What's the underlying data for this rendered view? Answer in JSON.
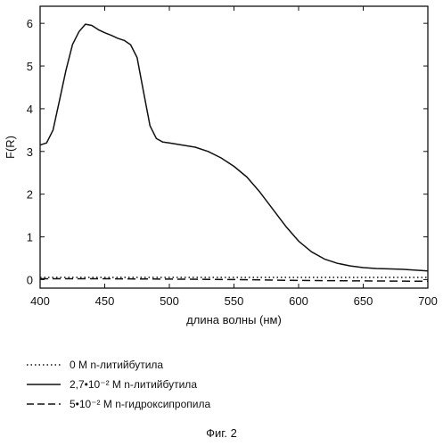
{
  "chart_data": {
    "type": "line",
    "xlabel": "длина волны (нм)",
    "ylabel": "F(R)",
    "xlim": [
      400,
      700
    ],
    "ylim": [
      -0.2,
      6.4
    ],
    "xticks": [
      "400",
      "450",
      "500",
      "550",
      "600",
      "650",
      "700"
    ],
    "yticks": [
      "0",
      "1",
      "2",
      "3",
      "4",
      "5",
      "6"
    ],
    "grid": false,
    "legend_position": "bottom",
    "series": [
      {
        "name": "0 М n-литийбутила",
        "style": "dotted",
        "x": [
          400,
          450,
          500,
          550,
          600,
          650,
          700
        ],
        "y": [
          0.05,
          0.05,
          0.05,
          0.05,
          0.05,
          0.05,
          0.05
        ]
      },
      {
        "name": "2,7•10⁻² М n-литийбутила",
        "style": "solid",
        "x": [
          400,
          405,
          410,
          415,
          420,
          425,
          430,
          435,
          440,
          445,
          450,
          455,
          460,
          465,
          470,
          475,
          480,
          485,
          490,
          495,
          500,
          510,
          520,
          530,
          540,
          550,
          560,
          570,
          580,
          590,
          600,
          610,
          620,
          630,
          640,
          650,
          660,
          680,
          700
        ],
        "y": [
          3.15,
          3.2,
          3.5,
          4.2,
          4.9,
          5.5,
          5.8,
          5.98,
          5.95,
          5.85,
          5.78,
          5.72,
          5.65,
          5.6,
          5.5,
          5.2,
          4.4,
          3.6,
          3.3,
          3.22,
          3.2,
          3.15,
          3.1,
          3.0,
          2.85,
          2.65,
          2.4,
          2.05,
          1.65,
          1.25,
          0.9,
          0.65,
          0.48,
          0.38,
          0.32,
          0.28,
          0.26,
          0.24,
          0.2
        ]
      },
      {
        "name": "5•10⁻² М n-гидроксипропила",
        "style": "dashed",
        "x": [
          400,
          450,
          500,
          550,
          600,
          650,
          700
        ],
        "y": [
          0.02,
          0.02,
          0.01,
          0.0,
          -0.02,
          -0.03,
          -0.04
        ]
      }
    ]
  },
  "caption": "Фиг. 2"
}
